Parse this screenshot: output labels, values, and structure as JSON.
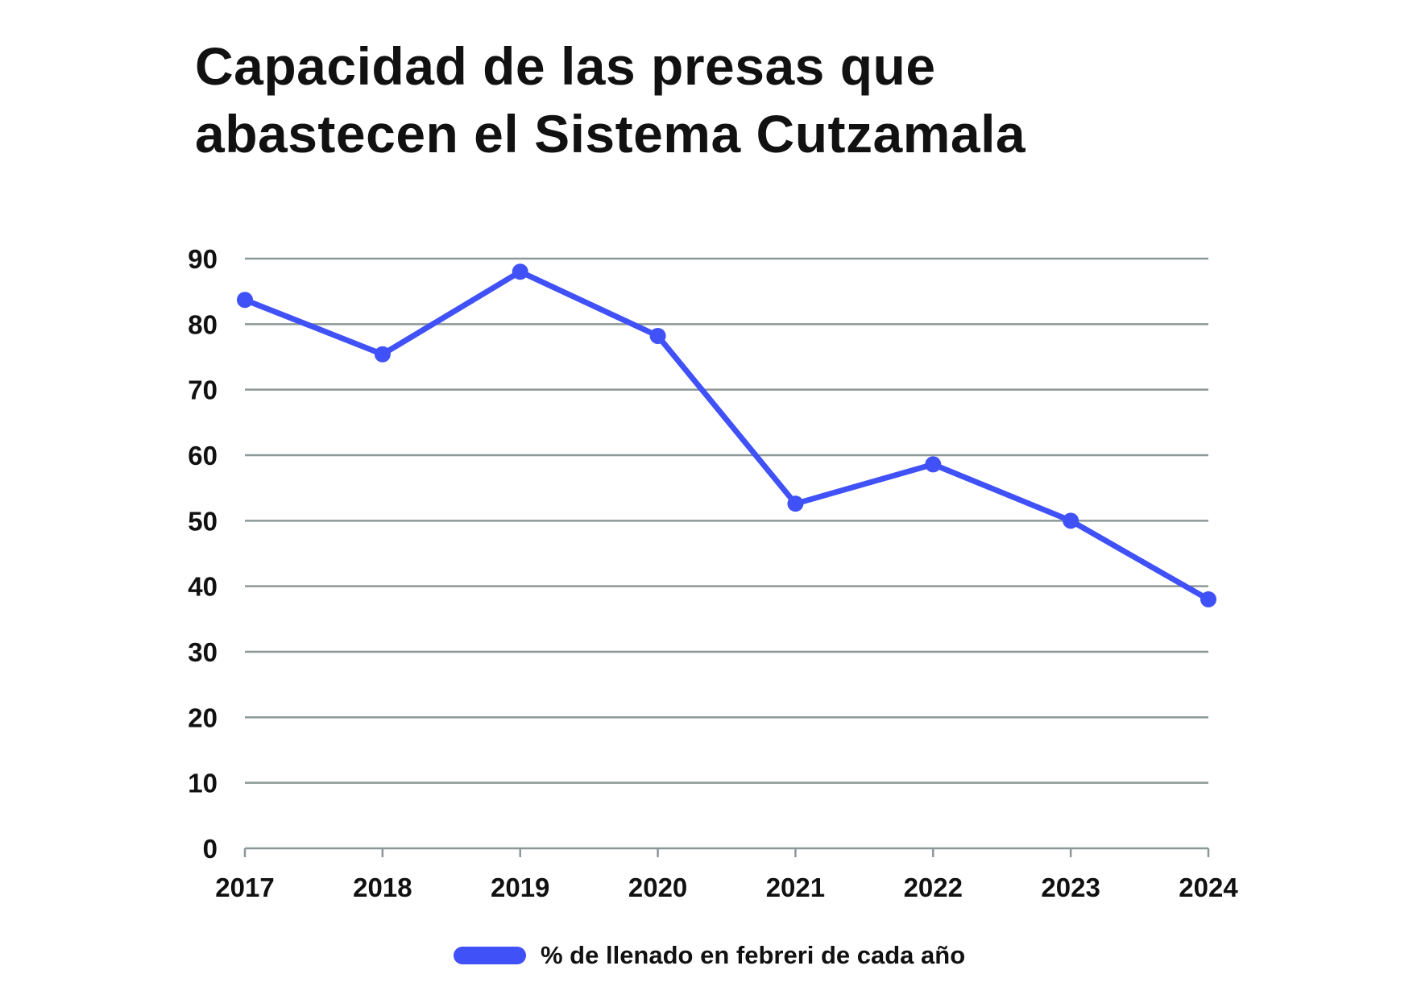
{
  "chart_data": {
    "type": "line",
    "title_lines": [
      "Capacidad de las presas que",
      "abastecen el Sistema Cutzamala"
    ],
    "xlabel": "",
    "ylabel": "",
    "categories": [
      "2017",
      "2018",
      "2019",
      "2020",
      "2021",
      "2022",
      "2023",
      "2024"
    ],
    "series": [
      {
        "name": "% de llenado en febreri de cada año",
        "values": [
          83.7,
          75.4,
          88.0,
          78.2,
          52.6,
          58.6,
          50.0,
          38.0
        ],
        "color": "#3f51f7"
      }
    ],
    "yticks": [
      "0",
      "10",
      "20",
      "30",
      "40",
      "50",
      "60",
      "70",
      "80",
      "90"
    ],
    "ylim": [
      0,
      90
    ],
    "grid": true,
    "legend_position": "bottom-center",
    "gridline_color": "#8c9897"
  }
}
